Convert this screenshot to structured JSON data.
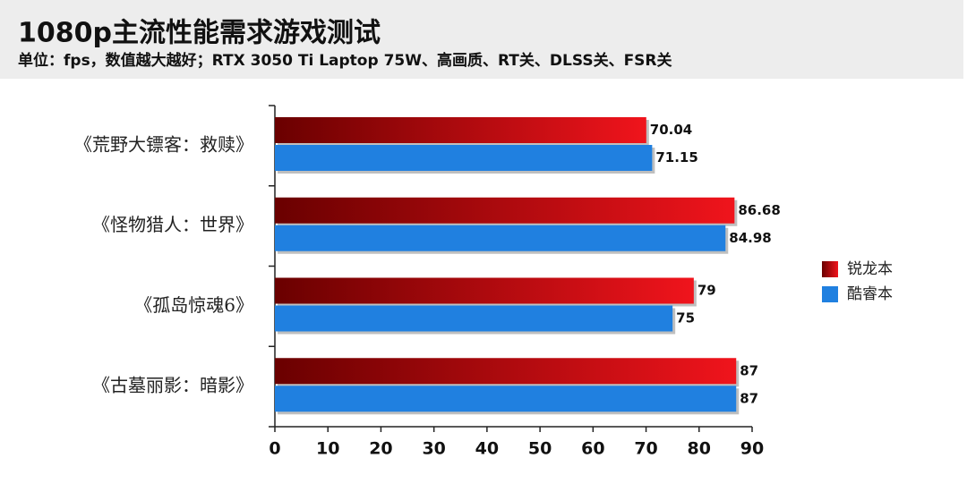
{
  "chart_data": {
    "type": "bar",
    "orientation": "horizontal",
    "title": "1080p主流性能需求游戏测试",
    "subtitle": "单位：fps，数值越大越好；RTX 3050 Ti Laptop 75W、高画质、RT关、DLSS关、FSR关",
    "categories": [
      "《荒野大镖客：救赎》",
      "《怪物猎人：世界》",
      "《孤岛惊魂6》",
      "《古墓丽影：暗影》"
    ],
    "series": [
      {
        "name": "锐龙本",
        "color": "#f0141c",
        "values": [
          70.04,
          86.68,
          79,
          87
        ]
      },
      {
        "name": "酷睿本",
        "color": "#2080e0",
        "values": [
          71.15,
          84.98,
          75,
          87
        ]
      }
    ],
    "xlim": [
      0,
      90
    ],
    "xticks": [
      0,
      10,
      20,
      30,
      40,
      50,
      60,
      70,
      80,
      90
    ],
    "legend": "right",
    "grid": false
  }
}
